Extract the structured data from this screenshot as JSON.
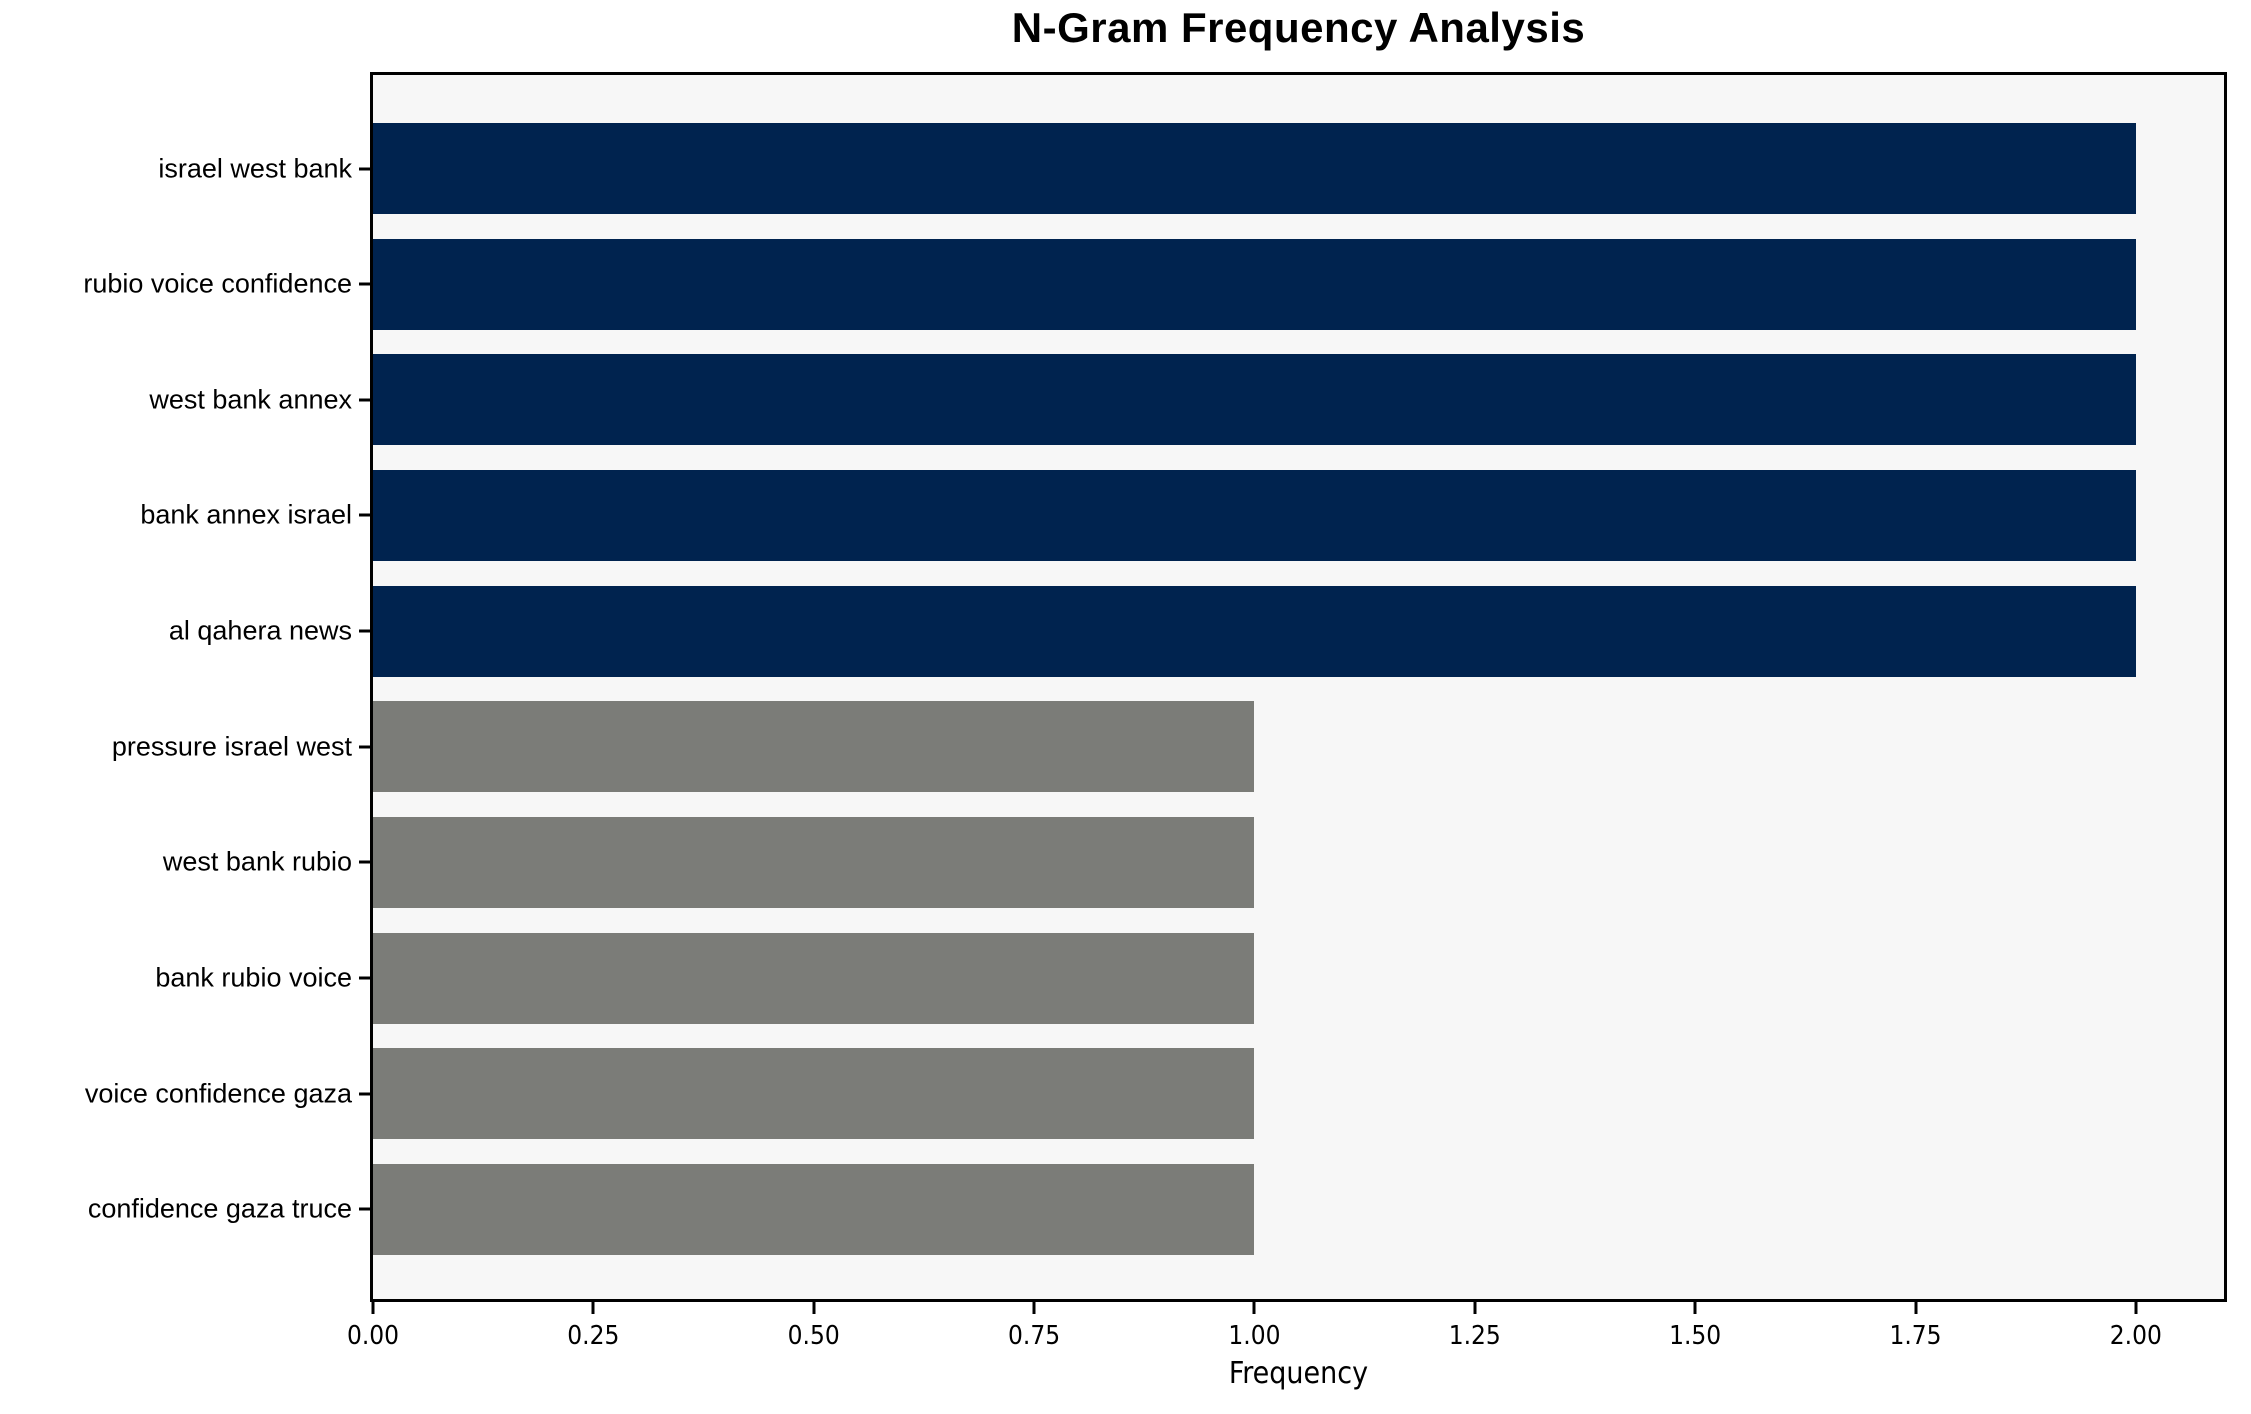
{
  "chart_data": {
    "type": "bar",
    "orientation": "horizontal",
    "title": "N-Gram Frequency Analysis",
    "xlabel": "Frequency",
    "ylabel": "",
    "categories": [
      "israel west bank",
      "rubio voice confidence",
      "west bank annex",
      "bank annex israel",
      "al qahera news",
      "pressure israel west",
      "west bank rubio",
      "bank rubio voice",
      "voice confidence gaza",
      "confidence gaza truce"
    ],
    "values": [
      2,
      2,
      2,
      2,
      2,
      1,
      1,
      1,
      1,
      1
    ],
    "bar_colors": [
      "#00234f",
      "#00234f",
      "#00234f",
      "#00234f",
      "#00234f",
      "#7b7c78",
      "#7b7c78",
      "#7b7c78",
      "#7b7c78",
      "#7b7c78"
    ],
    "colors": {
      "frequency_2": "#00234f",
      "frequency_1": "#7b7c78",
      "plot_background": "#f7f7f7",
      "axis": "#000000"
    },
    "xlim": [
      0,
      2.1
    ],
    "xticks": [
      0,
      0.25,
      0.5,
      0.75,
      1.0,
      1.25,
      1.5,
      1.75,
      2.0
    ],
    "xtick_labels": [
      "0.00",
      "0.25",
      "0.50",
      "0.75",
      "1.00",
      "1.25",
      "1.50",
      "1.75",
      "2.00"
    ],
    "grid": false,
    "legend": null
  }
}
